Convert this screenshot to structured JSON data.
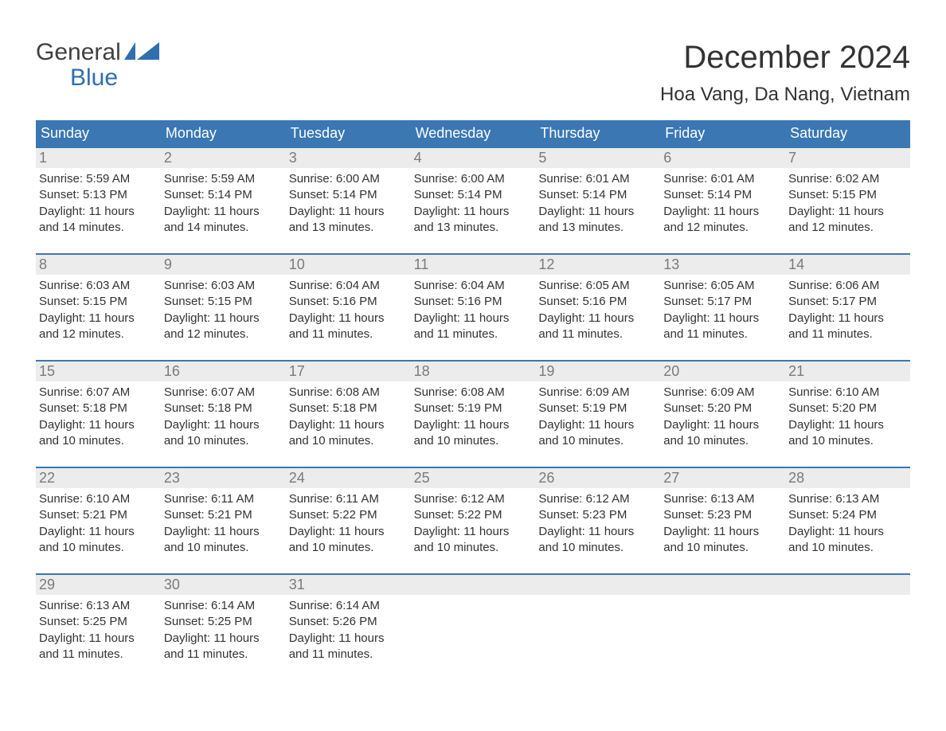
{
  "logo": {
    "text_general": "General",
    "text_blue": "Blue"
  },
  "title": "December 2024",
  "location": "Hoa Vang, Da Nang, Vietnam",
  "colors": {
    "header_bg": "#3a77b3",
    "header_text": "#ffffff",
    "daynum_bg": "#ececec",
    "daynum_text": "#7a7a7a",
    "row_border": "#3a77b3",
    "body_text": "#333333",
    "logo_general": "#404040",
    "logo_blue": "#2f6fad"
  },
  "weekdays": [
    "Sunday",
    "Monday",
    "Tuesday",
    "Wednesday",
    "Thursday",
    "Friday",
    "Saturday"
  ],
  "weeks": [
    [
      {
        "num": "1",
        "sunrise": "Sunrise: 5:59 AM",
        "sunset": "Sunset: 5:13 PM",
        "day1": "Daylight: 11 hours",
        "day2": "and 14 minutes."
      },
      {
        "num": "2",
        "sunrise": "Sunrise: 5:59 AM",
        "sunset": "Sunset: 5:14 PM",
        "day1": "Daylight: 11 hours",
        "day2": "and 14 minutes."
      },
      {
        "num": "3",
        "sunrise": "Sunrise: 6:00 AM",
        "sunset": "Sunset: 5:14 PM",
        "day1": "Daylight: 11 hours",
        "day2": "and 13 minutes."
      },
      {
        "num": "4",
        "sunrise": "Sunrise: 6:00 AM",
        "sunset": "Sunset: 5:14 PM",
        "day1": "Daylight: 11 hours",
        "day2": "and 13 minutes."
      },
      {
        "num": "5",
        "sunrise": "Sunrise: 6:01 AM",
        "sunset": "Sunset: 5:14 PM",
        "day1": "Daylight: 11 hours",
        "day2": "and 13 minutes."
      },
      {
        "num": "6",
        "sunrise": "Sunrise: 6:01 AM",
        "sunset": "Sunset: 5:14 PM",
        "day1": "Daylight: 11 hours",
        "day2": "and 12 minutes."
      },
      {
        "num": "7",
        "sunrise": "Sunrise: 6:02 AM",
        "sunset": "Sunset: 5:15 PM",
        "day1": "Daylight: 11 hours",
        "day2": "and 12 minutes."
      }
    ],
    [
      {
        "num": "8",
        "sunrise": "Sunrise: 6:03 AM",
        "sunset": "Sunset: 5:15 PM",
        "day1": "Daylight: 11 hours",
        "day2": "and 12 minutes."
      },
      {
        "num": "9",
        "sunrise": "Sunrise: 6:03 AM",
        "sunset": "Sunset: 5:15 PM",
        "day1": "Daylight: 11 hours",
        "day2": "and 12 minutes."
      },
      {
        "num": "10",
        "sunrise": "Sunrise: 6:04 AM",
        "sunset": "Sunset: 5:16 PM",
        "day1": "Daylight: 11 hours",
        "day2": "and 11 minutes."
      },
      {
        "num": "11",
        "sunrise": "Sunrise: 6:04 AM",
        "sunset": "Sunset: 5:16 PM",
        "day1": "Daylight: 11 hours",
        "day2": "and 11 minutes."
      },
      {
        "num": "12",
        "sunrise": "Sunrise: 6:05 AM",
        "sunset": "Sunset: 5:16 PM",
        "day1": "Daylight: 11 hours",
        "day2": "and 11 minutes."
      },
      {
        "num": "13",
        "sunrise": "Sunrise: 6:05 AM",
        "sunset": "Sunset: 5:17 PM",
        "day1": "Daylight: 11 hours",
        "day2": "and 11 minutes."
      },
      {
        "num": "14",
        "sunrise": "Sunrise: 6:06 AM",
        "sunset": "Sunset: 5:17 PM",
        "day1": "Daylight: 11 hours",
        "day2": "and 11 minutes."
      }
    ],
    [
      {
        "num": "15",
        "sunrise": "Sunrise: 6:07 AM",
        "sunset": "Sunset: 5:18 PM",
        "day1": "Daylight: 11 hours",
        "day2": "and 10 minutes."
      },
      {
        "num": "16",
        "sunrise": "Sunrise: 6:07 AM",
        "sunset": "Sunset: 5:18 PM",
        "day1": "Daylight: 11 hours",
        "day2": "and 10 minutes."
      },
      {
        "num": "17",
        "sunrise": "Sunrise: 6:08 AM",
        "sunset": "Sunset: 5:18 PM",
        "day1": "Daylight: 11 hours",
        "day2": "and 10 minutes."
      },
      {
        "num": "18",
        "sunrise": "Sunrise: 6:08 AM",
        "sunset": "Sunset: 5:19 PM",
        "day1": "Daylight: 11 hours",
        "day2": "and 10 minutes."
      },
      {
        "num": "19",
        "sunrise": "Sunrise: 6:09 AM",
        "sunset": "Sunset: 5:19 PM",
        "day1": "Daylight: 11 hours",
        "day2": "and 10 minutes."
      },
      {
        "num": "20",
        "sunrise": "Sunrise: 6:09 AM",
        "sunset": "Sunset: 5:20 PM",
        "day1": "Daylight: 11 hours",
        "day2": "and 10 minutes."
      },
      {
        "num": "21",
        "sunrise": "Sunrise: 6:10 AM",
        "sunset": "Sunset: 5:20 PM",
        "day1": "Daylight: 11 hours",
        "day2": "and 10 minutes."
      }
    ],
    [
      {
        "num": "22",
        "sunrise": "Sunrise: 6:10 AM",
        "sunset": "Sunset: 5:21 PM",
        "day1": "Daylight: 11 hours",
        "day2": "and 10 minutes."
      },
      {
        "num": "23",
        "sunrise": "Sunrise: 6:11 AM",
        "sunset": "Sunset: 5:21 PM",
        "day1": "Daylight: 11 hours",
        "day2": "and 10 minutes."
      },
      {
        "num": "24",
        "sunrise": "Sunrise: 6:11 AM",
        "sunset": "Sunset: 5:22 PM",
        "day1": "Daylight: 11 hours",
        "day2": "and 10 minutes."
      },
      {
        "num": "25",
        "sunrise": "Sunrise: 6:12 AM",
        "sunset": "Sunset: 5:22 PM",
        "day1": "Daylight: 11 hours",
        "day2": "and 10 minutes."
      },
      {
        "num": "26",
        "sunrise": "Sunrise: 6:12 AM",
        "sunset": "Sunset: 5:23 PM",
        "day1": "Daylight: 11 hours",
        "day2": "and 10 minutes."
      },
      {
        "num": "27",
        "sunrise": "Sunrise: 6:13 AM",
        "sunset": "Sunset: 5:23 PM",
        "day1": "Daylight: 11 hours",
        "day2": "and 10 minutes."
      },
      {
        "num": "28",
        "sunrise": "Sunrise: 6:13 AM",
        "sunset": "Sunset: 5:24 PM",
        "day1": "Daylight: 11 hours",
        "day2": "and 10 minutes."
      }
    ],
    [
      {
        "num": "29",
        "sunrise": "Sunrise: 6:13 AM",
        "sunset": "Sunset: 5:25 PM",
        "day1": "Daylight: 11 hours",
        "day2": "and 11 minutes."
      },
      {
        "num": "30",
        "sunrise": "Sunrise: 6:14 AM",
        "sunset": "Sunset: 5:25 PM",
        "day1": "Daylight: 11 hours",
        "day2": "and 11 minutes."
      },
      {
        "num": "31",
        "sunrise": "Sunrise: 6:14 AM",
        "sunset": "Sunset: 5:26 PM",
        "day1": "Daylight: 11 hours",
        "day2": "and 11 minutes."
      },
      {
        "empty": true
      },
      {
        "empty": true
      },
      {
        "empty": true
      },
      {
        "empty": true
      }
    ]
  ]
}
